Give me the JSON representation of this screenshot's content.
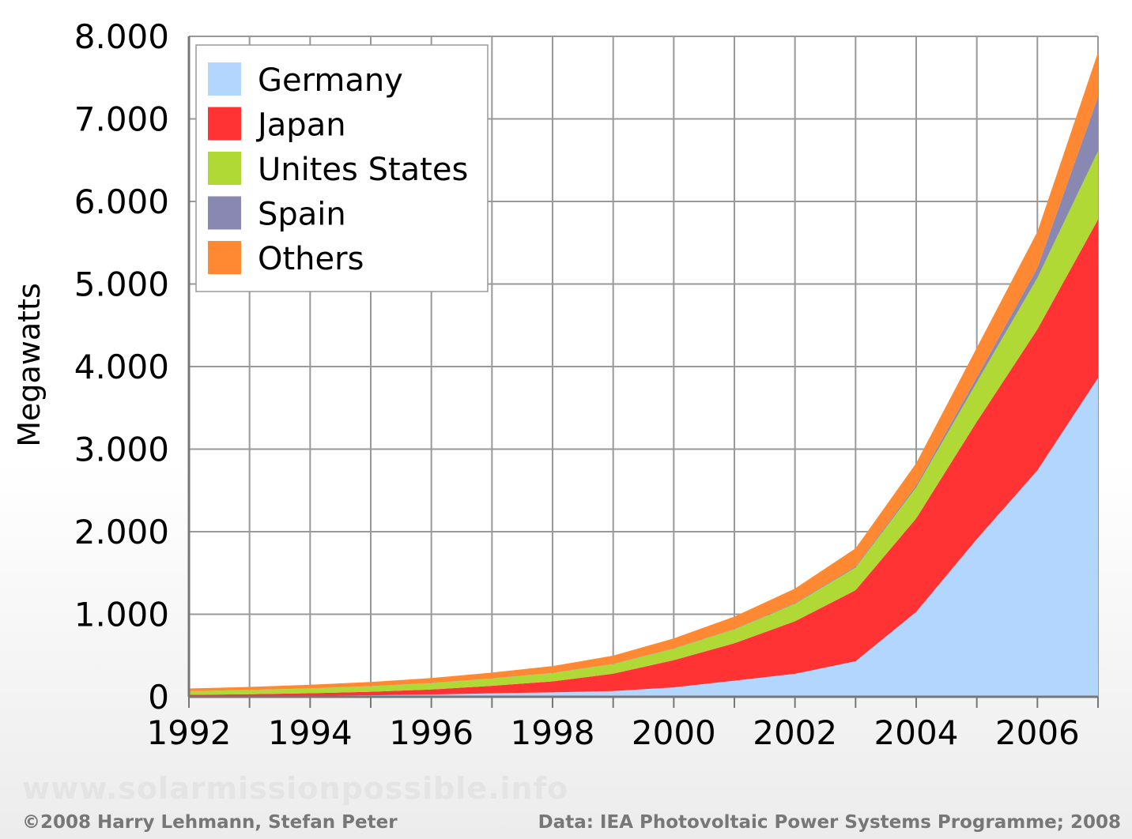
{
  "chart_data": {
    "type": "area",
    "stacked": true,
    "ylabel": "Megawatts",
    "ylim": [
      0,
      8000
    ],
    "y_ticks": [
      0,
      1000,
      2000,
      3000,
      4000,
      5000,
      6000,
      7000,
      8000
    ],
    "y_tick_labels": [
      "0",
      "1.000",
      "2.000",
      "3.000",
      "4.000",
      "5.000",
      "6.000",
      "7.000",
      "8.000"
    ],
    "xlim": [
      1992,
      2007
    ],
    "x": [
      1992,
      1993,
      1994,
      1995,
      1996,
      1997,
      1998,
      1999,
      2000,
      2001,
      2002,
      2003,
      2004,
      2005,
      2006,
      2007
    ],
    "x_tick_labels": [
      "1992",
      "1994",
      "1996",
      "1998",
      "2000",
      "2002",
      "2004",
      "2006"
    ],
    "grid": true,
    "legend_position": "top-left",
    "series": [
      {
        "name": "Germany",
        "color": "#b3d6ff",
        "values": [
          5,
          8,
          12,
          18,
          28,
          42,
          54,
          70,
          114,
          195,
          278,
          431,
          1029,
          1910,
          2743,
          3862
        ]
      },
      {
        "name": "Japan",
        "color": "#ff3333",
        "values": [
          19,
          24,
          31,
          43,
          60,
          91,
          133,
          209,
          330,
          453,
          637,
          860,
          1132,
          1422,
          1708,
          1919
        ]
      },
      {
        "name": "Unites States",
        "color": "#b0d936",
        "values": [
          44,
          50,
          58,
          67,
          77,
          88,
          100,
          117,
          139,
          168,
          212,
          275,
          376,
          479,
          624,
          830
        ]
      },
      {
        "name": "Spain",
        "color": "#8888b3",
        "values": [
          0,
          1,
          1,
          1,
          2,
          2,
          2,
          3,
          4,
          5,
          8,
          12,
          23,
          58,
          118,
          655
        ]
      },
      {
        "name": "Others",
        "color": "#ff8833",
        "values": [
          32,
          37,
          43,
          51,
          60,
          70,
          83,
          100,
          120,
          150,
          176,
          220,
          270,
          360,
          440,
          540
        ]
      }
    ]
  },
  "footer": {
    "watermark": "www.solarmissionpossible.info",
    "credit": "©2008 Harry Lehmann, Stefan Peter",
    "source": "Data: IEA Photovoltaic Power Systems Programme; 2008"
  }
}
